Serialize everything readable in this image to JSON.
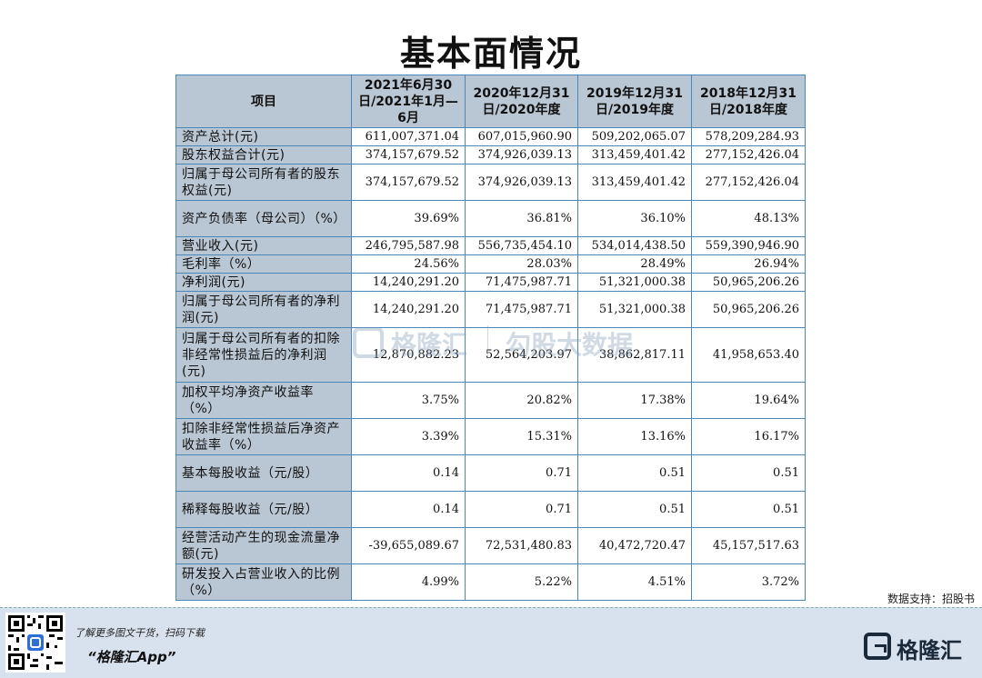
{
  "title": "基本面情况",
  "table": {
    "headers": [
      "项目",
      "2021年6月30日/2021年1月—6月",
      "2020年12月31日/2020年度",
      "2019年12月31日/2019年度",
      "2018年12月31日/2018年度"
    ],
    "rows": [
      {
        "label": "资产总计(元)",
        "values": [
          "611,007,371.04",
          "607,015,960.90",
          "509,202,065.07",
          "578,209,284.93"
        ]
      },
      {
        "label": "股东权益合计(元)",
        "values": [
          "374,157,679.52",
          "374,926,039.13",
          "313,459,401.42",
          "277,152,426.04"
        ]
      },
      {
        "label": "归属于母公司所有者的股东权益(元)",
        "values": [
          "374,157,679.52",
          "374,926,039.13",
          "313,459,401.42",
          "277,152,426.04"
        ]
      },
      {
        "label": "资产负债率（母公司）（%）",
        "values": [
          "39.69%",
          "36.81%",
          "36.10%",
          "48.13%"
        ]
      },
      {
        "label": "营业收入(元)",
        "values": [
          "246,795,587.98",
          "556,735,454.10",
          "534,014,438.50",
          "559,390,946.90"
        ]
      },
      {
        "label": "毛利率（%）",
        "values": [
          "24.56%",
          "28.03%",
          "28.49%",
          "26.94%"
        ]
      },
      {
        "label": "净利润(元)",
        "values": [
          "14,240,291.20",
          "71,475,987.71",
          "51,321,000.38",
          "50,965,206.26"
        ]
      },
      {
        "label": "归属于母公司所有者的净利润(元)",
        "values": [
          "14,240,291.20",
          "71,475,987.71",
          "51,321,000.38",
          "50,965,206.26"
        ]
      },
      {
        "label": "归属于母公司所有者的扣除非经常性损益后的净利润(元)",
        "values": [
          "12,870,882.23",
          "52,564,203.97",
          "38,862,817.11",
          "41,958,653.40"
        ]
      },
      {
        "label": "加权平均净资产收益率（%）",
        "values": [
          "3.75%",
          "20.82%",
          "17.38%",
          "19.64%"
        ]
      },
      {
        "label": "扣除非经常性损益后净资产收益率（%）",
        "values": [
          "3.39%",
          "15.31%",
          "13.16%",
          "16.17%"
        ]
      },
      {
        "label": "基本每股收益（元/股）",
        "values": [
          "0.14",
          "0.71",
          "0.51",
          "0.51"
        ]
      },
      {
        "label": "稀释每股收益（元/股）",
        "values": [
          "0.14",
          "0.71",
          "0.51",
          "0.51"
        ]
      },
      {
        "label": "经营活动产生的现金流量净额(元)",
        "values": [
          "-39,655,089.67",
          "72,531,480.83",
          "40,472,720.47",
          "45,157,517.63"
        ]
      },
      {
        "label": "研发投入占营业收入的比例（%）",
        "values": [
          "4.99%",
          "5.22%",
          "4.51%",
          "3.72%"
        ]
      }
    ]
  },
  "watermark": {
    "brand": "格隆汇",
    "product": "勾股大数据"
  },
  "source": "数据支持：招股书",
  "footer": {
    "tagline": "了解更多图文干货，扫码下载",
    "app": "“格隆汇App”",
    "logo_text": "格隆汇"
  }
}
